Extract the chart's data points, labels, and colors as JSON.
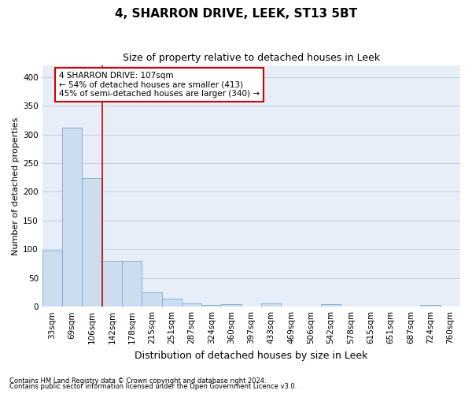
{
  "title": "4, SHARRON DRIVE, LEEK, ST13 5BT",
  "subtitle": "Size of property relative to detached houses in Leek",
  "xlabel": "Distribution of detached houses by size in Leek",
  "ylabel": "Number of detached properties",
  "footnote1": "Contains HM Land Registry data © Crown copyright and database right 2024.",
  "footnote2": "Contains public sector information licensed under the Open Government Licence v3.0.",
  "categories": [
    "33sqm",
    "69sqm",
    "106sqm",
    "142sqm",
    "178sqm",
    "215sqm",
    "251sqm",
    "287sqm",
    "324sqm",
    "360sqm",
    "397sqm",
    "433sqm",
    "469sqm",
    "506sqm",
    "542sqm",
    "578sqm",
    "615sqm",
    "651sqm",
    "687sqm",
    "724sqm",
    "760sqm"
  ],
  "values": [
    98,
    312,
    224,
    80,
    80,
    25,
    14,
    6,
    3,
    4,
    0,
    6,
    0,
    0,
    4,
    0,
    0,
    0,
    0,
    3,
    0
  ],
  "bar_color": "#ccddf0",
  "bar_edge_color": "#7aaad0",
  "grid_color": "#c8d0dc",
  "bg_color": "#e8eef8",
  "vline_color": "#cc0000",
  "vline_bar_index": 2,
  "annotation_line1": "4 SHARRON DRIVE: 107sqm",
  "annotation_line2": "← 54% of detached houses are smaller (413)",
  "annotation_line3": "45% of semi-detached houses are larger (340) →",
  "annotation_box_edgecolor": "#cc0000",
  "ylim_max": 420,
  "yticks": [
    0,
    50,
    100,
    150,
    200,
    250,
    300,
    350,
    400
  ],
  "title_fontsize": 11,
  "subtitle_fontsize": 9,
  "xlabel_fontsize": 9,
  "ylabel_fontsize": 8,
  "tick_fontsize": 7.5,
  "annot_fontsize": 7.5,
  "footnote_fontsize": 6
}
